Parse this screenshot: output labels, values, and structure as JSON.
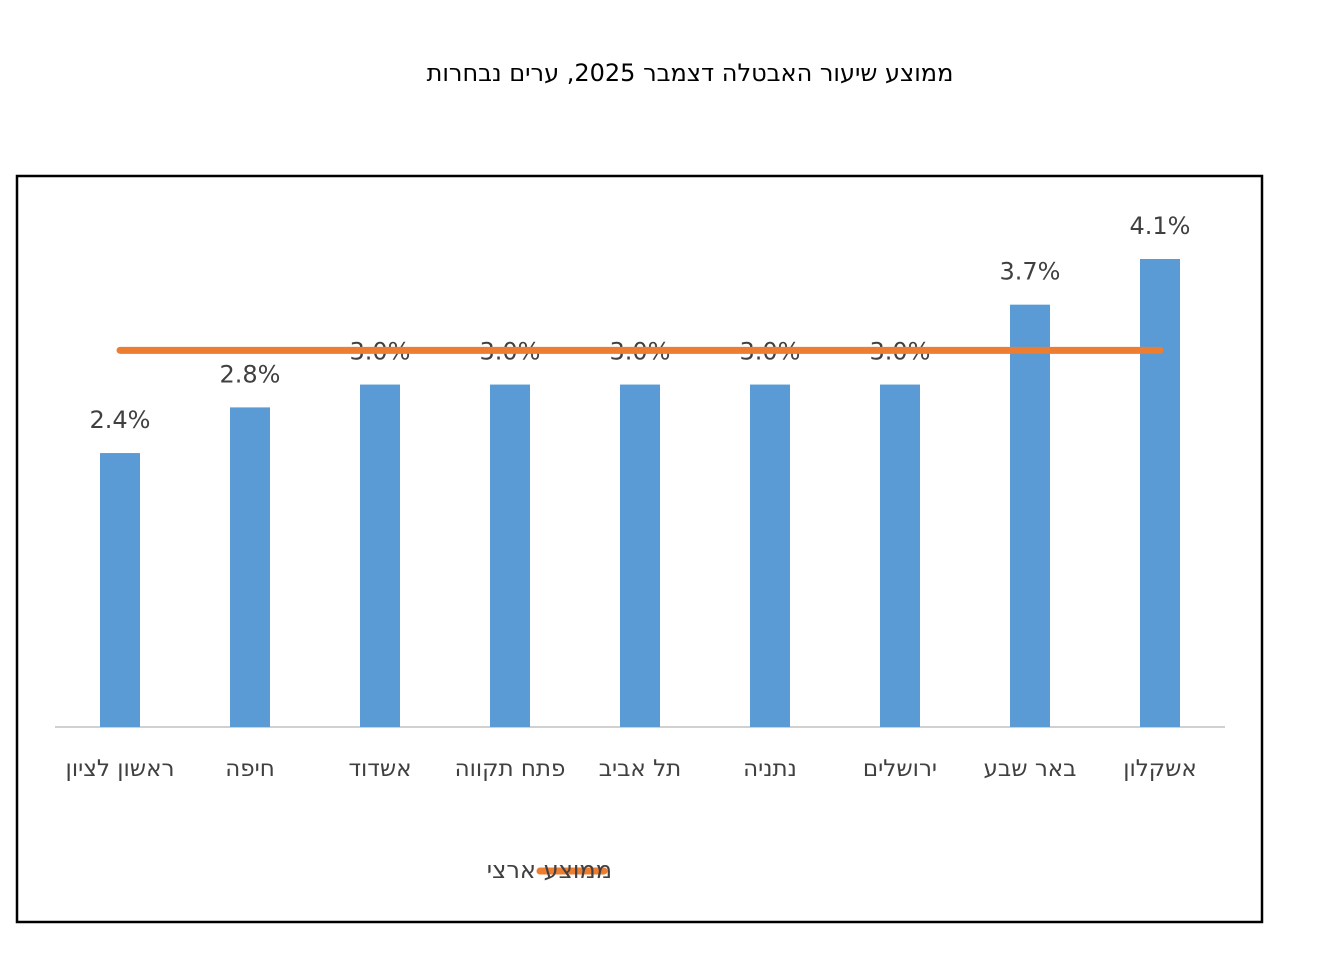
{
  "chart_data": {
    "type": "bar",
    "title": "ממוצע שיעור האבטלה דצמבר 2025, ערים נבחרות",
    "categories": [
      "ראשון לציון",
      "חיפה",
      "אשדוד",
      "פתח תקווה",
      "תל אביב",
      "נתניה",
      "ירושלים",
      "באר שבע",
      "אשקלון"
    ],
    "series": [
      {
        "type": "bar",
        "color": "#5b9bd5",
        "values": [
          2.4,
          2.8,
          3.0,
          3.0,
          3.0,
          3.0,
          3.0,
          3.7,
          4.1
        ],
        "value_labels": [
          "2.4%",
          "2.8%",
          "3.0%",
          "3.0%",
          "3.0%",
          "3.0%",
          "3.0%",
          "3.7%",
          "4.1%"
        ]
      },
      {
        "type": "line",
        "name": "ממוצע ארצי",
        "color": "#ed7d31",
        "values": [
          3.3,
          3.3,
          3.3,
          3.3,
          3.3,
          3.3,
          3.3,
          3.3,
          3.3
        ]
      }
    ]
  }
}
